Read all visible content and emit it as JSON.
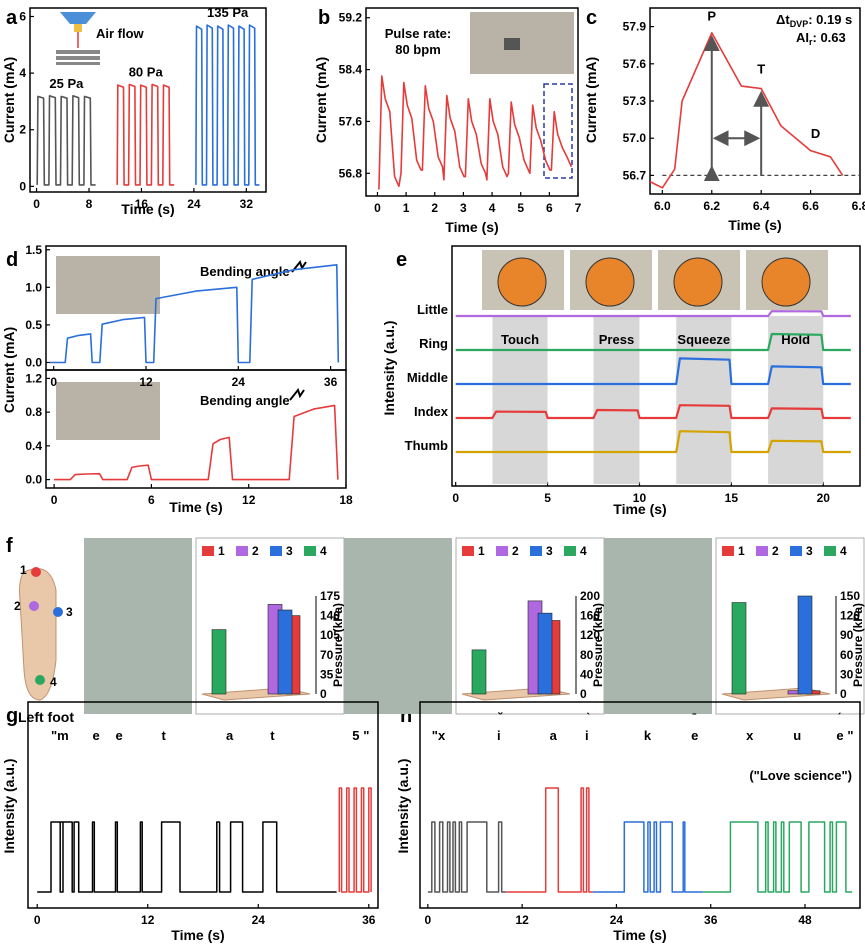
{
  "panel_labels": [
    "a",
    "b",
    "c",
    "d",
    "e",
    "f",
    "g",
    "h"
  ],
  "chart_data": [
    {
      "id": "a",
      "type": "line",
      "xlabel": "Time (s)",
      "ylabel": "Current (mA)",
      "xlim": [
        -1,
        35
      ],
      "ylim": [
        -0.2,
        6.3
      ],
      "xticks": [
        0,
        8,
        16,
        24,
        32
      ],
      "yticks": [
        0,
        2,
        4,
        6
      ],
      "inset_label": "Air flow",
      "series": [
        {
          "name": "25 Pa",
          "color": "#555555",
          "t0": 0.1,
          "t1": 9,
          "low": 0.05,
          "high": 3.2,
          "n": 5
        },
        {
          "name": "80 Pa",
          "color": "#e63b3b",
          "t0": 12.3,
          "t1": 21,
          "low": 0.05,
          "high": 3.6,
          "n": 5
        },
        {
          "name": "135 Pa",
          "color": "#2a6fdb",
          "t0": 24.3,
          "t1": 34,
          "low": 0.05,
          "high": 5.7,
          "n": 6
        }
      ]
    },
    {
      "id": "b",
      "type": "line",
      "xlabel": "Time (s)",
      "ylabel": "Current (mA)",
      "xlim": [
        -0.4,
        7
      ],
      "ylim": [
        56.45,
        59.35
      ],
      "xticks": [
        0,
        1,
        2,
        3,
        4,
        5,
        6,
        7
      ],
      "yticks": [
        56.8,
        57.6,
        58.4,
        59.2
      ],
      "annotation": [
        "Pulse rate:",
        "80 bpm"
      ],
      "color": "#e63b3b",
      "beats": [
        0.05,
        0.82,
        1.57,
        2.32,
        3.07,
        3.82,
        4.57,
        5.32,
        6.07
      ],
      "peaks": [
        58.3,
        58.2,
        58.15,
        58.0,
        57.95,
        57.95,
        57.9,
        57.85,
        57.75
      ],
      "troughs": [
        56.55,
        56.8,
        56.85,
        56.7,
        56.75,
        56.7,
        56.8,
        56.8,
        56.85
      ]
    },
    {
      "id": "c",
      "type": "line",
      "xlabel": "Time (s)",
      "ylabel": "Current (mA)",
      "xlim": [
        5.95,
        6.8
      ],
      "ylim": [
        56.55,
        58.05
      ],
      "xticks": [
        6.0,
        6.2,
        6.4,
        6.6,
        6.8
      ],
      "yticks": [
        56.7,
        57.0,
        57.3,
        57.6,
        57.9
      ],
      "color": "#e63b3b",
      "x": [
        5.95,
        6.0,
        6.05,
        6.08,
        6.2,
        6.32,
        6.4,
        6.48,
        6.6,
        6.68,
        6.73
      ],
      "y": [
        56.65,
        56.6,
        56.75,
        57.3,
        57.85,
        57.42,
        57.4,
        57.1,
        56.9,
        56.85,
        56.7
      ],
      "baseline": 56.7,
      "markers": [
        "P",
        "T",
        "D"
      ],
      "metrics": {
        "dt_prefix": "Δt",
        "dt_sub": "DVP",
        "dt_value": ": 0.19 s",
        "ai_prefix": "AI",
        "ai_sub": "r",
        "ai_value": ": 0.63"
      }
    },
    {
      "id": "d",
      "type": "line",
      "xlabel": "Time (s)",
      "ylabel": "Current (mA)",
      "annotation": "Bending angle",
      "top": {
        "color": "#2a6fdb",
        "xlim": [
          -1,
          38
        ],
        "ylim": [
          -0.1,
          1.55
        ],
        "xticks": [
          0,
          12,
          24,
          36
        ],
        "yticks": [
          0.0,
          0.5,
          1.0,
          1.5
        ],
        "steps": [
          [
            1.5,
            0.38
          ],
          [
            6,
            0.6
          ],
          [
            13,
            1.0
          ],
          [
            25.5,
            1.3
          ]
        ],
        "ends": [
          5,
          12,
          24,
          37
        ]
      },
      "bottom": {
        "color": "#e63b3b",
        "xlim": [
          -0.5,
          18
        ],
        "ylim": [
          -0.1,
          1.3
        ],
        "xticks": [
          0,
          6,
          12,
          18
        ],
        "yticks": [
          0.0,
          0.4,
          0.8,
          1.2
        ],
        "steps": [
          [
            1,
            0.07
          ],
          [
            4.5,
            0.17
          ],
          [
            9.5,
            0.5
          ],
          [
            14.5,
            0.88
          ]
        ],
        "ends": [
          3,
          6,
          11,
          17.5
        ]
      }
    },
    {
      "id": "e",
      "type": "line",
      "xlabel": "Time (s)",
      "ylabel": "Intensity (a.u.)",
      "xlim": [
        -0.2,
        22
      ],
      "xticks": [
        0,
        5,
        10,
        15,
        20
      ],
      "phases": [
        {
          "label": "Touch",
          "from": 2,
          "to": 5
        },
        {
          "label": "Press",
          "from": 7.5,
          "to": 10
        },
        {
          "label": "Squeeze",
          "from": 12,
          "to": 15
        },
        {
          "label": "Hold",
          "from": 17,
          "to": 20
        }
      ],
      "series": [
        {
          "name": "Little",
          "color": "#b068e0",
          "base": 5,
          "bumps": [
            0,
            0,
            0,
            0.3
          ]
        },
        {
          "name": "Ring",
          "color": "#2aa860",
          "base": 4,
          "bumps": [
            0,
            0,
            0,
            1.0
          ]
        },
        {
          "name": "Middle",
          "color": "#2a6fdb",
          "base": 3,
          "bumps": [
            0,
            0,
            1.6,
            1.1
          ]
        },
        {
          "name": "Index",
          "color": "#e63b3b",
          "base": 2,
          "bumps": [
            0.4,
            0.5,
            0.8,
            0.6
          ]
        },
        {
          "name": "Thumb",
          "color": "#d4a300",
          "base": 1,
          "bumps": [
            0,
            0,
            1.3,
            0.7
          ]
        }
      ]
    },
    {
      "id": "f",
      "type": "bar",
      "foot_label": "Left foot",
      "ylabel": "Pressure (kPa)",
      "legend": [
        "1",
        "2",
        "3",
        "4"
      ],
      "colors": [
        "#e63b3b",
        "#b068e0",
        "#2a6fdb",
        "#2aa860"
      ],
      "subplots": [
        {
          "yticks": [
            0,
            35,
            70,
            105,
            140,
            175
          ],
          "ymax": 175,
          "values": [
            140,
            160,
            150,
            115
          ]
        },
        {
          "yticks": [
            0,
            40,
            80,
            120,
            160,
            200
          ],
          "ymax": 200,
          "values": [
            150,
            190,
            165,
            90
          ]
        },
        {
          "yticks": [
            0,
            30,
            60,
            90,
            120,
            150
          ],
          "ymax": 150,
          "values": [
            5,
            5,
            150,
            140
          ]
        }
      ]
    },
    {
      "id": "g",
      "type": "line",
      "xlabel": "Time (s)",
      "ylabel": "Intensity (a.u.)",
      "xlim": [
        -1,
        37
      ],
      "xticks": [
        0,
        12,
        24,
        36
      ],
      "title_letters": [
        "\"m",
        "e",
        "e",
        "t",
        "a",
        "t"
      ],
      "final_letter": "5",
      "quote_end": "\"",
      "pulses": [
        [
          1.5,
          1.3
        ],
        [
          2.5,
          1.3
        ],
        [
          4,
          0.5
        ],
        [
          6,
          0.2
        ],
        [
          8.5,
          0.2
        ],
        [
          11.2,
          0.2
        ],
        [
          13.5,
          2.0
        ],
        [
          19.5,
          0.3
        ],
        [
          21,
          1.3
        ],
        [
          24.5,
          1.5
        ]
      ],
      "red_pulses": [
        [
          32.8,
          0.25
        ],
        [
          33.6,
          0.25
        ],
        [
          34.4,
          0.25
        ],
        [
          35.2,
          0.25
        ],
        [
          36,
          0.25
        ]
      ]
    },
    {
      "id": "h",
      "type": "line",
      "xlabel": "Time (s)",
      "ylabel": "Intensity (a.u.)",
      "xlim": [
        -1,
        55
      ],
      "xticks": [
        0,
        12,
        24,
        36,
        48
      ],
      "letters": [
        {
          "t": "\"x",
          "c": "#555555",
          "accent": ""
        },
        {
          "t": "i",
          "c": "#555555",
          "accent": "ˇ"
        },
        {
          "t": "a",
          "c": "#e63b3b",
          "accent": ""
        },
        {
          "t": "i",
          "c": "#e63b3b",
          "accent": "ˋ"
        },
        {
          "t": "k",
          "c": "#2a6fdb",
          "accent": ""
        },
        {
          "t": "e",
          "c": "#2a6fdb",
          "accent": "ˉ"
        },
        {
          "t": "x",
          "c": "#2aa860",
          "accent": ""
        },
        {
          "t": "u",
          "c": "#2aa860",
          "accent": ""
        },
        {
          "t": "e",
          "c": "#2aa860",
          "accent": "ˊ"
        }
      ],
      "quote_end": "\"",
      "subtitle": "(\"Love science\")"
    }
  ]
}
